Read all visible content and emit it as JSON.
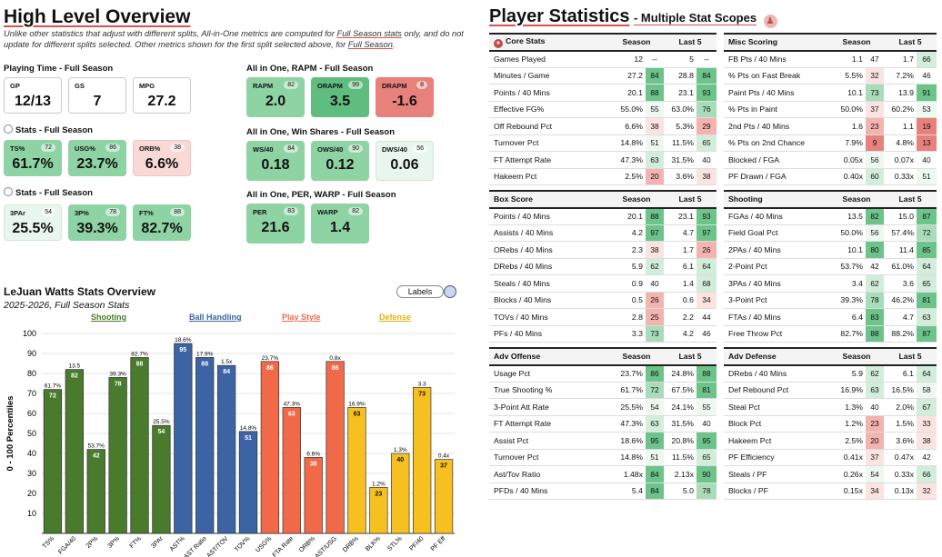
{
  "header": {
    "title": "High Level Overview",
    "note_a": "Unlike other statistics that adjust with different splits, All-in-One metrics are computed for ",
    "note_link": "Full Season stats",
    "note_b": " only, and do not update for different splits selected. Other metrics shown for the first split selected above, for ",
    "note_link2": "Full Season",
    "note_c": "."
  },
  "playing_time": {
    "title": "Playing Time - Full Season",
    "cards": [
      {
        "label": "GP",
        "value": "12/13"
      },
      {
        "label": "GS",
        "value": "7"
      },
      {
        "label": "MPG",
        "value": "27.2"
      }
    ]
  },
  "stats1": {
    "title": "Stats - Full Season",
    "cards": [
      {
        "label": "TS%",
        "pct": "72",
        "value": "61.7%"
      },
      {
        "label": "USG%",
        "pct": "86",
        "value": "23.7%"
      },
      {
        "label": "ORB%",
        "pct": "38",
        "value": "6.6%"
      }
    ]
  },
  "stats2": {
    "title": "Stats - Full Season",
    "cards": [
      {
        "label": "3PAr",
        "pct": "54",
        "value": "25.5%"
      },
      {
        "label": "3P%",
        "pct": "78",
        "value": "39.3%"
      },
      {
        "label": "FT%",
        "pct": "88",
        "value": "82.7%"
      }
    ]
  },
  "rapm": {
    "title": "All in One, RAPM - Full Season",
    "cards": [
      {
        "label": "RAPM",
        "pct": "82",
        "value": "2.0"
      },
      {
        "label": "ORAPM",
        "pct": "99",
        "value": "3.5"
      },
      {
        "label": "DRAPM",
        "pct": "8",
        "value": "-1.6"
      }
    ]
  },
  "winshares": {
    "title": "All in One, Win Shares - Full Season",
    "cards": [
      {
        "label": "WS/40",
        "pct": "84",
        "value": "0.18"
      },
      {
        "label": "OWS/40",
        "pct": "90",
        "value": "0.12"
      },
      {
        "label": "DWS/40",
        "pct": "56",
        "value": "0.06"
      }
    ]
  },
  "per": {
    "title": "All in One, PER, WARP - Full Season",
    "cards": [
      {
        "label": "PER",
        "pct": "83",
        "value": "21.6"
      },
      {
        "label": "WARP",
        "pct": "82",
        "value": "1.4"
      }
    ]
  },
  "chart_data": {
    "type": "bar",
    "title": "LeJuan Watts Stats Overview",
    "subtitle": "2025-2026, Full Season Stats",
    "ylabel": "0 - 100 Percentiles",
    "ylim": [
      0,
      100
    ],
    "yticks": [
      10,
      20,
      30,
      40,
      50,
      60,
      70,
      80,
      90,
      100
    ],
    "labels_button": "Labels",
    "groups": [
      {
        "name": "Shooting",
        "color": "#4a7a2c"
      },
      {
        "name": "Ball Handling",
        "color": "#3c64a4"
      },
      {
        "name": "Play Style",
        "color": "#f06a4a"
      },
      {
        "name": "Defense",
        "color": "#f5c020"
      }
    ],
    "bars": [
      {
        "cat": "TS%",
        "value": 72,
        "raw": "61.7%",
        "group": 0
      },
      {
        "cat": "FGA/40",
        "value": 82,
        "raw": "13.5",
        "group": 0
      },
      {
        "cat": "2P%",
        "value": 42,
        "raw": "53.7%",
        "group": 0
      },
      {
        "cat": "3P%",
        "value": 78,
        "raw": "39.3%",
        "group": 0
      },
      {
        "cat": "FT%",
        "value": 88,
        "raw": "82.7%",
        "group": 0
      },
      {
        "cat": "3PAr",
        "value": 54,
        "raw": "25.5%",
        "group": 0
      },
      {
        "cat": "AST%",
        "value": 95,
        "raw": "18.6%",
        "group": 1
      },
      {
        "cat": "AST Ratio",
        "value": 88,
        "raw": "17.9%",
        "group": 1
      },
      {
        "cat": "AST/TOV",
        "value": 84,
        "raw": "1.5x",
        "group": 1
      },
      {
        "cat": "TOV%",
        "value": 51,
        "raw": "14.8%",
        "group": 1
      },
      {
        "cat": "USG%",
        "value": 86,
        "raw": "23.7%",
        "group": 2
      },
      {
        "cat": "FTA Rate",
        "value": 63,
        "raw": "47.3%",
        "group": 2
      },
      {
        "cat": "ORB%",
        "value": 38,
        "raw": "6.6%",
        "group": 2
      },
      {
        "cat": "AST/USG",
        "value": 86,
        "raw": "0.8x",
        "group": 2
      },
      {
        "cat": "DRB%",
        "value": 63,
        "raw": "16.9%",
        "group": 3
      },
      {
        "cat": "BLK%",
        "value": 23,
        "raw": "1.2%",
        "group": 3
      },
      {
        "cat": "STL%",
        "value": 40,
        "raw": "1.3%",
        "group": 3
      },
      {
        "cat": "PF/40",
        "value": 73,
        "raw": "3.3",
        "group": 3
      },
      {
        "cat": "PF Eff",
        "value": 37,
        "raw": "0.4x",
        "group": 3
      }
    ]
  },
  "player_stats": {
    "title": "Player Statistics",
    "subtitle": "- Multiple Stat Scopes",
    "col_season": "Season",
    "col_last5": "Last 5",
    "tables": [
      {
        "name": "Core Stats",
        "rows": [
          [
            "Games Played",
            "12",
            "--",
            "5",
            "--"
          ],
          [
            "Minutes / Game",
            "27.2",
            "84",
            "28.8",
            "84"
          ],
          [
            "Points / 40 Mins",
            "20.1",
            "88",
            "23.1",
            "93"
          ],
          [
            "Effective FG%",
            "55.0%",
            "55",
            "63.0%",
            "76"
          ],
          [
            "Off Rebound Pct",
            "6.6%",
            "38",
            "5.3%",
            "29"
          ],
          [
            "Turnover Pct",
            "14.8%",
            "51",
            "11.5%",
            "65"
          ],
          [
            "FT Attempt Rate",
            "47.3%",
            "63",
            "31.5%",
            "40"
          ],
          [
            "Hakeem Pct",
            "2.5%",
            "20",
            "3.6%",
            "38"
          ]
        ]
      },
      {
        "name": "Misc Scoring",
        "rows": [
          [
            "FB Pts / 40 Mins",
            "1.1",
            "47",
            "1.7",
            "66"
          ],
          [
            "% Pts on Fast Break",
            "5.5%",
            "32",
            "7.2%",
            "46"
          ],
          [
            "Paint Pts / 40 Mins",
            "10.1",
            "73",
            "13.9",
            "91"
          ],
          [
            "% Pts in Paint",
            "50.0%",
            "37",
            "60.2%",
            "53"
          ],
          [
            "2nd Pts / 40 Mins",
            "1.6",
            "23",
            "1.1",
            "19"
          ],
          [
            "% Pts on 2nd Chance",
            "7.9%",
            "9",
            "4.8%",
            "13"
          ],
          [
            "Blocked / FGA",
            "0.05x",
            "56",
            "0.07x",
            "40"
          ],
          [
            "PF Drawn / FGA",
            "0.40x",
            "60",
            "0.33x",
            "51"
          ]
        ]
      },
      {
        "name": "Box Score",
        "rows": [
          [
            "Points / 40 Mins",
            "20.1",
            "88",
            "23.1",
            "93"
          ],
          [
            "Assists / 40 Mins",
            "4.2",
            "97",
            "4.7",
            "97"
          ],
          [
            "ORebs / 40 Mins",
            "2.3",
            "38",
            "1.7",
            "26"
          ],
          [
            "DRebs / 40 Mins",
            "5.9",
            "62",
            "6.1",
            "64"
          ],
          [
            "Steals / 40 Mins",
            "0.9",
            "40",
            "1.4",
            "68"
          ],
          [
            "Blocks / 40 Mins",
            "0.5",
            "26",
            "0.6",
            "34"
          ],
          [
            "TOVs / 40 Mins",
            "2.8",
            "25",
            "2.2",
            "44"
          ],
          [
            "PFs / 40 Mins",
            "3.3",
            "73",
            "4.2",
            "46"
          ]
        ]
      },
      {
        "name": "Shooting",
        "rows": [
          [
            "FGAs / 40 Mins",
            "13.5",
            "82",
            "15.0",
            "87"
          ],
          [
            "Field Goal Pct",
            "50.0%",
            "56",
            "57.4%",
            "72"
          ],
          [
            "2PAs / 40 Mins",
            "10.1",
            "80",
            "11.4",
            "85"
          ],
          [
            "2-Point Pct",
            "53.7%",
            "42",
            "61.0%",
            "64"
          ],
          [
            "3PAs / 40 Mins",
            "3.4",
            "62",
            "3.6",
            "65"
          ],
          [
            "3-Point Pct",
            "39.3%",
            "78",
            "46.2%",
            "81"
          ],
          [
            "FTAs / 40 Mins",
            "6.4",
            "83",
            "4.7",
            "63"
          ],
          [
            "Free Throw Pct",
            "82.7%",
            "88",
            "88.2%",
            "87"
          ]
        ]
      },
      {
        "name": "Adv Offense",
        "rows": [
          [
            "Usage Pct",
            "23.7%",
            "86",
            "24.8%",
            "88"
          ],
          [
            "True Shooting %",
            "61.7%",
            "72",
            "67.5%",
            "81"
          ],
          [
            "3-Point Att Rate",
            "25.5%",
            "54",
            "24.1%",
            "55"
          ],
          [
            "FT Attempt Rate",
            "47.3%",
            "63",
            "31.5%",
            "40"
          ],
          [
            "Assist Pct",
            "18.6%",
            "95",
            "20.8%",
            "95"
          ],
          [
            "Turnover Pct",
            "14.8%",
            "51",
            "11.5%",
            "65"
          ],
          [
            "Ast/Tov Ratio",
            "1.48x",
            "84",
            "2.13x",
            "90"
          ],
          [
            "PFDs / 40 Mins",
            "5.4",
            "84",
            "5.0",
            "78"
          ]
        ]
      },
      {
        "name": "Adv Defense",
        "rows": [
          [
            "DRebs / 40 Mins",
            "5.9",
            "62",
            "6.1",
            "64"
          ],
          [
            "Def Rebound Pct",
            "16.9%",
            "63",
            "16.5%",
            "58"
          ],
          [
            "Steal Pct",
            "1.3%",
            "40",
            "2.0%",
            "67"
          ],
          [
            "Block Pct",
            "1.2%",
            "23",
            "1.5%",
            "33"
          ],
          [
            "Hakeem Pct",
            "2.5%",
            "20",
            "3.6%",
            "38"
          ],
          [
            "PF Efficiency",
            "0.41x",
            "37",
            "0.47x",
            "42"
          ],
          [
            "Steals / PF",
            "0.26x",
            "54",
            "0.33x",
            "66"
          ],
          [
            "Blocks / PF",
            "0.15x",
            "34",
            "0.13x",
            "32"
          ]
        ]
      }
    ]
  }
}
